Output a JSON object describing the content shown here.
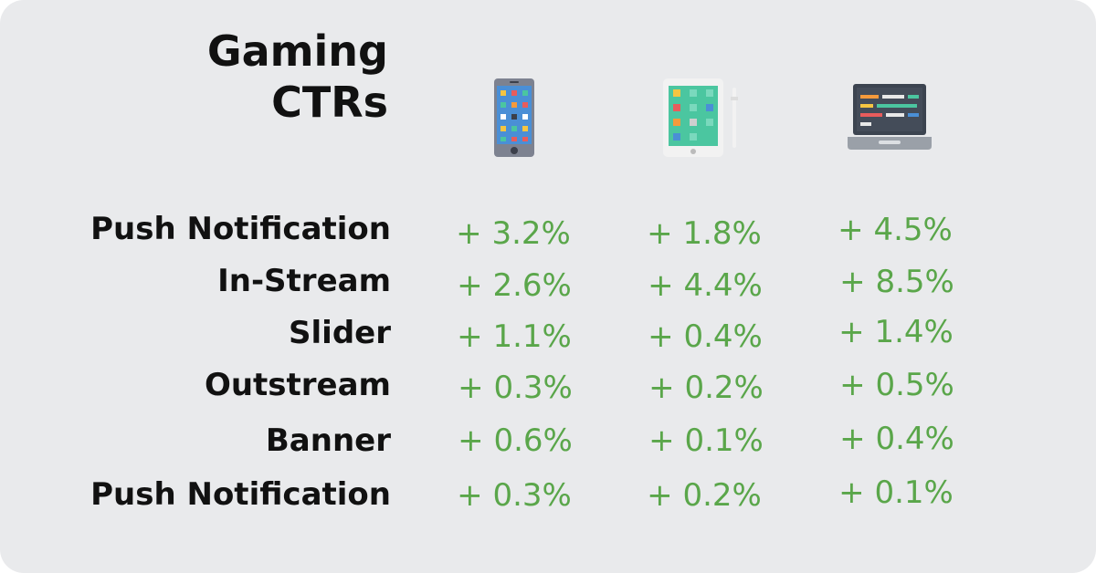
{
  "title": {
    "line1": "Gaming",
    "line2": "CTRs"
  },
  "columns": [
    {
      "icon": "smartphone-icon"
    },
    {
      "icon": "tablet-icon"
    },
    {
      "icon": "laptop-icon"
    }
  ],
  "rows": [
    {
      "label": "Push Notification",
      "values": [
        "+ 3.2%",
        "+ 1.8%",
        "+ 4.5%"
      ]
    },
    {
      "label": "In-Stream",
      "values": [
        "+ 2.6%",
        "+ 4.4%",
        "+ 8.5%"
      ]
    },
    {
      "label": "Slider",
      "values": [
        "+ 1.1%",
        "+ 0.4%",
        "+ 1.4%"
      ]
    },
    {
      "label": "Outstream",
      "values": [
        "+ 0.3%",
        "+ 0.2%",
        "+ 0.5%"
      ]
    },
    {
      "label": "Banner",
      "values": [
        "+ 0.6%",
        "+ 0.1%",
        "+ 0.4%"
      ]
    },
    {
      "label": "Push Notification",
      "values": [
        "+ 0.3%",
        "+ 0.2%",
        "+ 0.1%"
      ]
    }
  ],
  "colors": {
    "background": "#e9eaec",
    "label_text": "#111111",
    "value_text": "#5aa64a"
  }
}
